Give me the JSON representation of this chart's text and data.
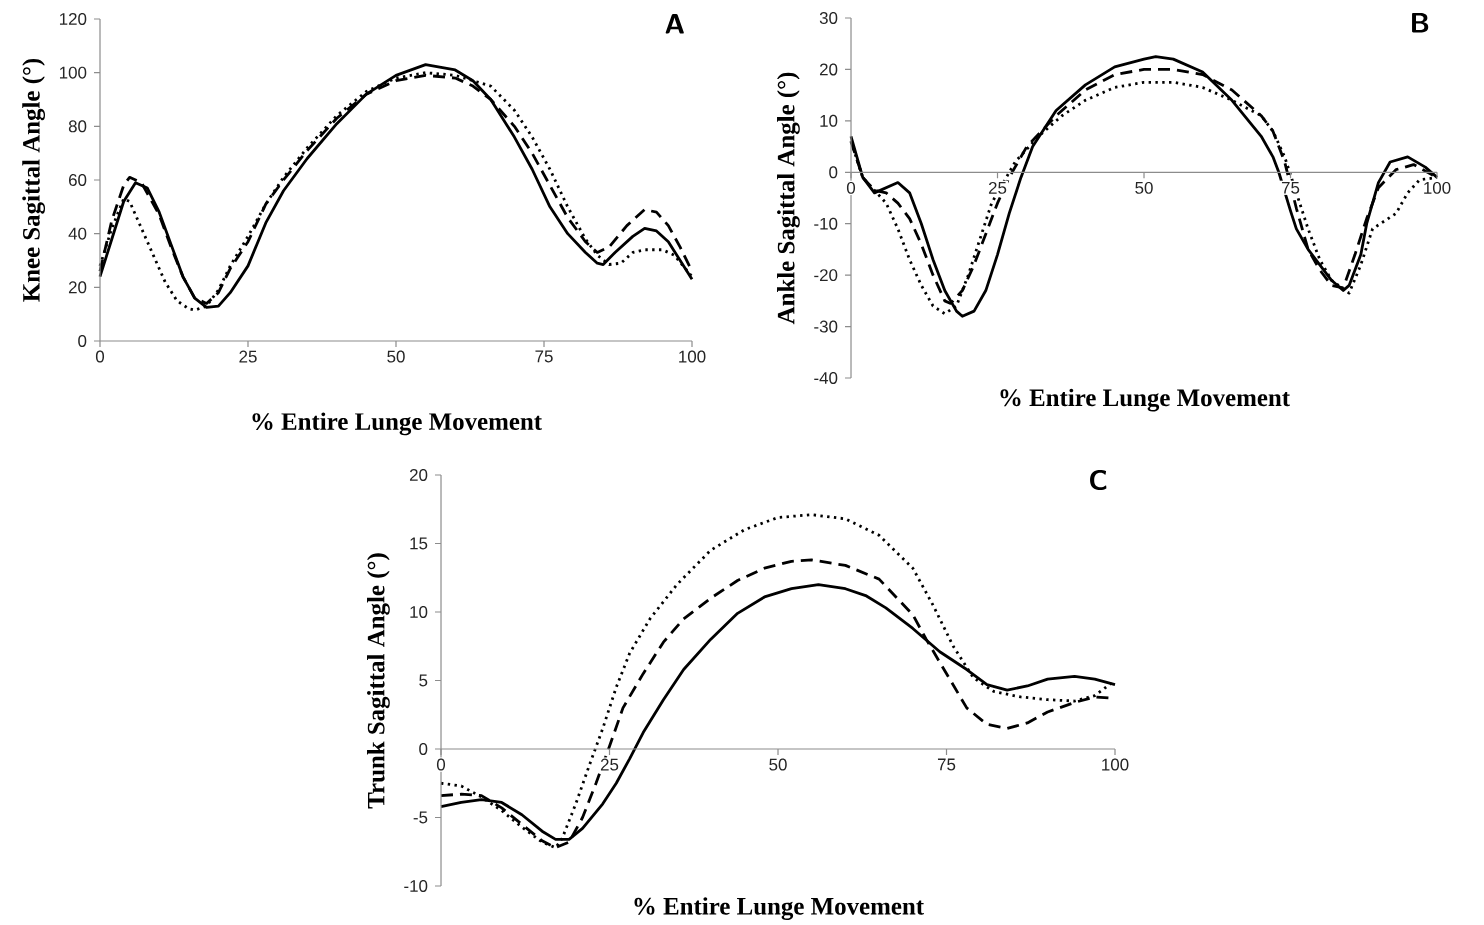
{
  "chart_data": [
    {
      "type": "line",
      "title": "A",
      "xlabel": "% Entire Lunge Movement",
      "ylabel": "Knee Sagittal Angle (°)",
      "xlim": [
        0,
        100
      ],
      "xticks": [
        0,
        25,
        50,
        75,
        100
      ],
      "ylim": [
        0,
        120
      ],
      "yticks": [
        0,
        20,
        40,
        60,
        80,
        100,
        120
      ],
      "series": [
        {
          "color": "#000000",
          "line_style": "solid",
          "x": [
            0,
            2,
            4,
            6,
            8,
            10,
            12,
            14,
            16,
            18,
            20,
            22,
            25,
            28,
            31,
            35,
            40,
            45,
            50,
            55,
            60,
            63,
            66,
            70,
            73,
            76,
            79,
            82,
            84,
            85,
            87,
            90,
            92,
            94,
            96,
            98,
            100
          ],
          "values": [
            24,
            38,
            52,
            59,
            57,
            48,
            36,
            24,
            16,
            12.5,
            13,
            18,
            28,
            44,
            56,
            68,
            81,
            92,
            99,
            103,
            101,
            97,
            90,
            76,
            64,
            50,
            40,
            33,
            29,
            28.5,
            33,
            39,
            42,
            41,
            37,
            30,
            23
          ]
        },
        {
          "color": "#000000",
          "line_style": "dashed",
          "x": [
            0,
            2,
            4,
            5,
            7,
            10,
            12,
            14,
            16,
            18,
            20,
            22,
            25,
            28,
            31,
            35,
            40,
            45,
            50,
            55,
            60,
            63,
            66,
            70,
            73,
            76,
            79,
            82,
            84,
            86,
            89,
            92,
            94,
            96,
            98,
            100
          ],
          "values": [
            26,
            45,
            58,
            61,
            59,
            47,
            35,
            24,
            16,
            14,
            18,
            27,
            37,
            51,
            60,
            71,
            83,
            92,
            97,
            99,
            98,
            95,
            90,
            80,
            70,
            58,
            46,
            37,
            33,
            35,
            43,
            49,
            48,
            43,
            35,
            26
          ]
        },
        {
          "color": "#000000",
          "line_style": "dotted",
          "x": [
            0,
            2,
            4,
            5,
            7,
            9,
            11,
            13,
            15,
            16,
            18,
            20,
            22,
            25,
            28,
            31,
            35,
            40,
            45,
            50,
            55,
            60,
            63,
            66,
            70,
            73,
            76,
            79,
            82,
            84,
            86,
            88,
            90,
            92,
            95,
            97,
            100
          ],
          "values": [
            28,
            42,
            53,
            52,
            42,
            32,
            22,
            15,
            12,
            11.5,
            13,
            19,
            28,
            39,
            51,
            61,
            72,
            84,
            93,
            98,
            100,
            99,
            97,
            95,
            86,
            76,
            64,
            50,
            38,
            32,
            28.5,
            29,
            33,
            34,
            34,
            32,
            24
          ]
        }
      ]
    },
    {
      "type": "line",
      "title": "B",
      "xlabel": "% Entire Lunge Movement",
      "ylabel": "Ankle Sagittal Angle (°)",
      "xlim": [
        0,
        100
      ],
      "xticks": [
        0,
        25,
        50,
        75,
        100
      ],
      "ylim": [
        -40,
        30
      ],
      "yticks": [
        -40,
        -30,
        -20,
        -10,
        0,
        10,
        20,
        30
      ],
      "series": [
        {
          "color": "#000000",
          "line_style": "solid",
          "x": [
            0,
            1,
            2,
            4,
            6,
            8,
            10,
            12,
            14,
            16,
            18,
            19,
            21,
            23,
            25,
            27,
            29,
            31,
            35,
            40,
            45,
            50,
            52,
            55,
            60,
            65,
            70,
            72,
            73,
            75,
            76,
            78,
            80,
            82,
            84,
            85,
            87,
            88,
            90,
            92,
            95,
            98,
            100
          ],
          "values": [
            7,
            3,
            -1,
            -4,
            -3,
            -2,
            -4,
            -10,
            -17,
            -23,
            -27,
            -28,
            -27,
            -23,
            -16,
            -8,
            -1,
            5,
            12,
            17,
            20.5,
            22,
            22.5,
            22,
            19.5,
            14,
            7,
            3,
            0,
            -7.5,
            -11,
            -15,
            -18,
            -21,
            -23,
            -22,
            -16,
            -10,
            -2,
            2,
            3,
            1,
            -1
          ]
        },
        {
          "color": "#000000",
          "line_style": "dashed",
          "x": [
            0,
            2,
            4,
            6,
            8,
            10,
            12,
            14,
            16,
            17,
            19,
            21,
            23,
            25,
            27,
            30,
            35,
            40,
            45,
            50,
            55,
            60,
            65,
            70,
            72,
            74,
            76,
            78,
            80,
            82,
            84,
            86,
            88,
            90,
            93,
            96,
            100
          ],
          "values": [
            6,
            -1,
            -3.5,
            -4,
            -6,
            -9,
            -14,
            -20,
            -25,
            -25.5,
            -23,
            -18,
            -12,
            -6,
            -1,
            5,
            11,
            16,
            19,
            20,
            20,
            19,
            16,
            11,
            8,
            2,
            -7,
            -15,
            -19,
            -22,
            -22.5,
            -16,
            -9,
            -3,
            0.5,
            1.5,
            -1
          ]
        },
        {
          "color": "#000000",
          "line_style": "dotted",
          "x": [
            0,
            2,
            4,
            6,
            8,
            10,
            12,
            14,
            16,
            18,
            20,
            22,
            24,
            26,
            28,
            32,
            36,
            40,
            45,
            50,
            55,
            60,
            65,
            70,
            72,
            74,
            77,
            78,
            80,
            82,
            85,
            87,
            89,
            91,
            93,
            95,
            97,
            100
          ],
          "values": [
            6,
            -1,
            -3.5,
            -6,
            -11,
            -17,
            -22,
            -26,
            -27.5,
            -26,
            -20,
            -13,
            -6,
            -2,
            2,
            7,
            11,
            14,
            16.5,
            17.5,
            17.5,
            16.5,
            14,
            11,
            8,
            3,
            -7.5,
            -11,
            -17,
            -21,
            -23.5,
            -18,
            -11,
            -9.5,
            -8,
            -4,
            -1.5,
            -1
          ]
        }
      ]
    },
    {
      "type": "line",
      "title": "C",
      "xlabel": "% Entire Lunge Movement",
      "ylabel": "Trunk Sagittal Angle (°)",
      "xlim": [
        0,
        100
      ],
      "xticks": [
        0,
        25,
        50,
        75,
        100
      ],
      "ylim": [
        -10,
        20
      ],
      "yticks": [
        -10,
        -5,
        0,
        5,
        10,
        15,
        20
      ],
      "series": [
        {
          "color": "#000000",
          "line_style": "solid",
          "x": [
            0,
            3,
            6,
            9,
            12,
            15,
            17,
            19,
            21,
            24,
            26,
            28,
            30,
            33,
            36,
            40,
            44,
            48,
            52,
            56,
            60,
            63,
            66,
            70,
            74,
            78,
            81,
            84,
            87,
            90,
            94,
            97,
            100
          ],
          "values": [
            -4.2,
            -3.9,
            -3.7,
            -3.9,
            -4.8,
            -6,
            -6.6,
            -6.6,
            -5.8,
            -4,
            -2.5,
            -0.7,
            1.2,
            3.6,
            5.8,
            8,
            9.9,
            11.1,
            11.7,
            12,
            11.7,
            11.2,
            10.3,
            8.8,
            7.1,
            5.8,
            4.7,
            4.3,
            4.6,
            5.1,
            5.3,
            5.1,
            4.7
          ]
        },
        {
          "color": "#000000",
          "line_style": "dashed",
          "x": [
            0,
            3,
            6,
            9,
            12,
            15,
            17,
            19,
            21,
            23,
            25,
            27,
            30,
            33,
            36,
            40,
            44,
            48,
            52,
            55,
            60,
            65,
            70,
            72,
            75,
            78,
            81,
            84,
            87,
            90,
            94,
            97,
            100
          ],
          "values": [
            -3.4,
            -3.3,
            -3.4,
            -4.3,
            -5.5,
            -6.7,
            -7.2,
            -6.8,
            -5,
            -2.5,
            0.2,
            3,
            5.5,
            7.8,
            9.5,
            11,
            12.3,
            13.2,
            13.7,
            13.8,
            13.4,
            12.4,
            9.8,
            8,
            5.5,
            3,
            1.8,
            1.5,
            1.9,
            2.7,
            3.4,
            3.8,
            3.7
          ]
        },
        {
          "color": "#000000",
          "line_style": "dotted",
          "x": [
            0,
            3,
            6,
            9,
            12,
            15,
            17,
            18,
            20,
            22,
            24,
            26,
            28,
            31,
            35,
            40,
            45,
            50,
            55,
            60,
            65,
            70,
            73,
            76,
            79,
            82,
            86,
            90,
            94,
            97,
            100
          ],
          "values": [
            -2.5,
            -2.7,
            -3.5,
            -4.5,
            -5.7,
            -6.8,
            -7.2,
            -6.5,
            -4,
            -1.2,
            1.5,
            4.5,
            7,
            9.5,
            12,
            14.5,
            16,
            16.9,
            17.1,
            16.8,
            15.6,
            13.2,
            10.5,
            7.5,
            5.2,
            4.2,
            3.8,
            3.6,
            3.5,
            3.9,
            5
          ]
        }
      ]
    }
  ]
}
